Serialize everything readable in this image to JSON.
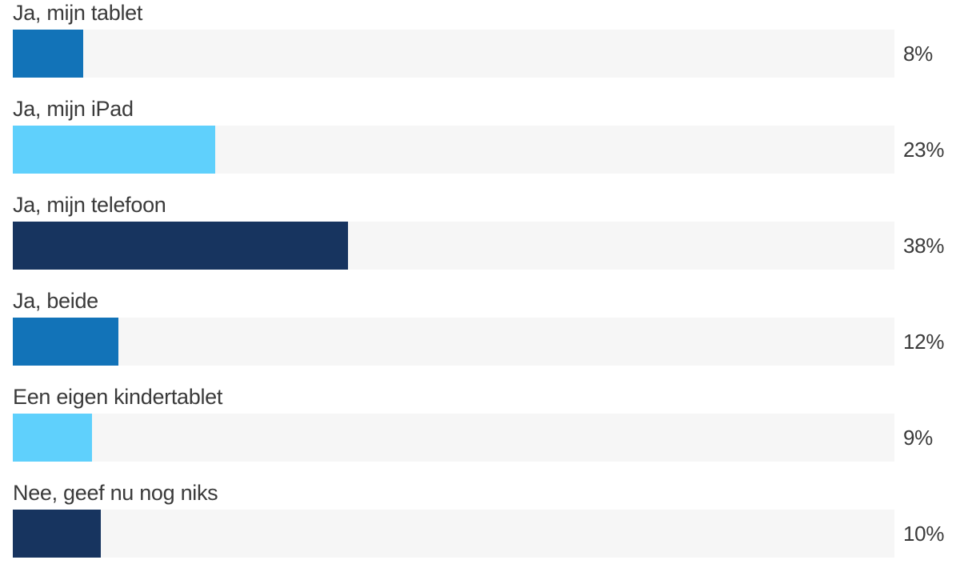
{
  "chart_data": {
    "type": "bar",
    "orientation": "horizontal",
    "categories": [
      "Ja, mijn tablet",
      "Ja, mijn iPad",
      "Ja, mijn telefoon",
      "Ja, beide",
      "Een eigen kindertablet",
      "Nee, geef nu nog niks"
    ],
    "values": [
      8,
      23,
      38,
      12,
      9,
      10
    ],
    "value_labels": [
      "8%",
      "23%",
      "38%",
      "12%",
      "9%",
      "10%"
    ],
    "colors": [
      "#1273b8",
      "#5fd0fc",
      "#17345f",
      "#1273b8",
      "#5fd0fc",
      "#17345f"
    ],
    "track_color": "#f6f6f6",
    "xlim": [
      0,
      100
    ],
    "unit": "%",
    "grid": false,
    "legend": "none"
  }
}
